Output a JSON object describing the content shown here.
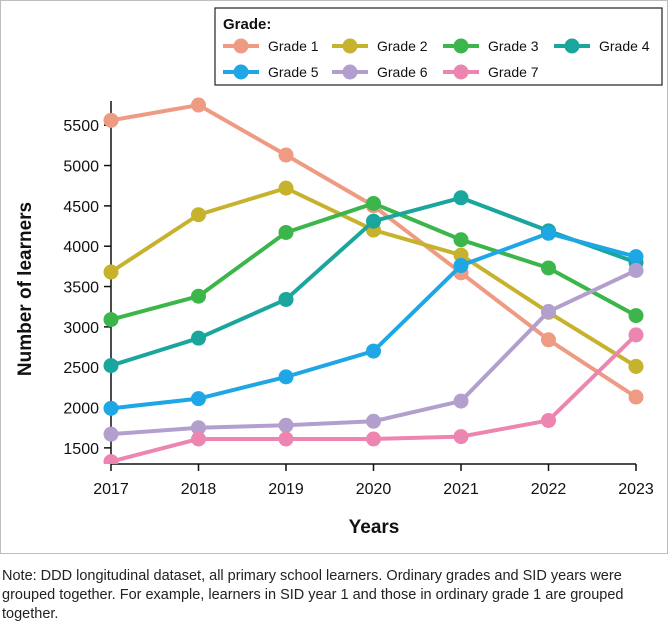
{
  "chart_data": {
    "type": "line",
    "title": "",
    "xlabel": "Years",
    "ylabel": "Number of learners",
    "x": [
      "2017",
      "2018",
      "2019",
      "2020",
      "2021",
      "2022",
      "2023"
    ],
    "ylim": [
      1300,
      5800
    ],
    "yticks": [
      "1500",
      "2000",
      "2500",
      "3000",
      "3500",
      "4000",
      "4500",
      "5000",
      "5500"
    ],
    "legend_title": "Grade:",
    "legend_position": "top-right",
    "series": [
      {
        "name": "Grade 1",
        "color": "#ef9a83",
        "values": [
          5560,
          5750,
          5130,
          4500,
          3670,
          2840,
          2130
        ]
      },
      {
        "name": "Grade 2",
        "color": "#c7b22e",
        "values": [
          3680,
          4390,
          4720,
          4200,
          3890,
          3180,
          2510
        ]
      },
      {
        "name": "Grade 3",
        "color": "#3cb54a",
        "values": [
          3090,
          3380,
          4170,
          4530,
          4080,
          3730,
          3140
        ]
      },
      {
        "name": "Grade 4",
        "color": "#1aa69c",
        "values": [
          2520,
          2860,
          3340,
          4310,
          4600,
          4190,
          3800
        ]
      },
      {
        "name": "Grade 5",
        "color": "#1ea7e4",
        "values": [
          1990,
          2110,
          2380,
          2700,
          3760,
          4160,
          3870
        ]
      },
      {
        "name": "Grade 6",
        "color": "#b39fce",
        "values": [
          1670,
          1750,
          1780,
          1830,
          2080,
          3190,
          3700
        ]
      },
      {
        "name": "Grade 7",
        "color": "#ec86b0",
        "values": [
          1330,
          1610,
          1610,
          1610,
          1640,
          1840,
          2900
        ]
      }
    ]
  },
  "note": "Note: DDD longitudinal dataset, all primary school learners. Ordinary grades and SID years were grouped together. For example, learners in SID year 1 and those in ordinary grade 1 are grouped together."
}
